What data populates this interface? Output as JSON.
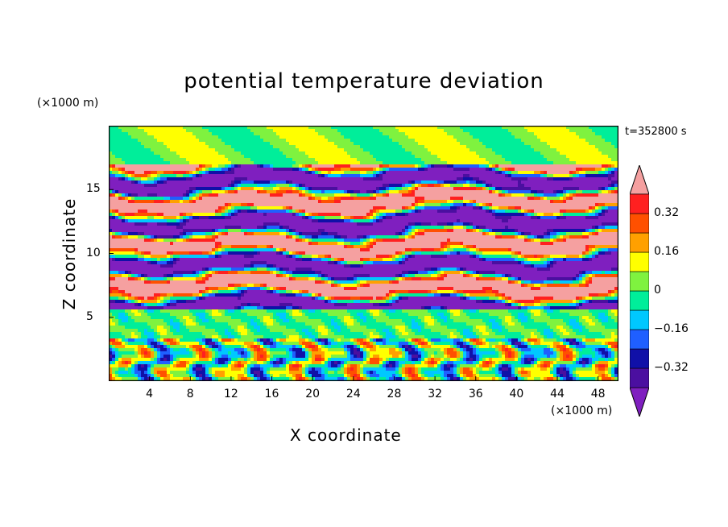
{
  "chart_data": {
    "type": "heatmap",
    "title": "potential temperature deviation",
    "xlabel": "X coordinate",
    "ylabel": "Z coordinate",
    "x_unit": "(×1000 m)",
    "y_unit": "(×1000 m)",
    "time_label": "t=352800 s",
    "xlim": [
      0,
      50
    ],
    "ylim": [
      0,
      20
    ],
    "x_ticks": [
      4,
      8,
      12,
      16,
      20,
      24,
      28,
      32,
      36,
      40,
      44,
      48
    ],
    "y_ticks": [
      5,
      10,
      15
    ],
    "colorbar": {
      "levels": [
        -0.4,
        -0.32,
        -0.24,
        -0.16,
        -0.08,
        0,
        0.08,
        0.16,
        0.24,
        0.32,
        0.4
      ],
      "labels": [
        "0.32",
        "0.16",
        "0",
        "−0.16",
        "−0.32"
      ],
      "label_values": [
        0.32,
        0.16,
        0,
        -0.16,
        -0.32
      ],
      "colors": [
        "#7f1fbf",
        "#4b0fa0",
        "#1010a8",
        "#1f5fff",
        "#00c8ff",
        "#00ee9a",
        "#7ff23f",
        "#ffff00",
        "#ffa000",
        "#ff5000",
        "#ff2020",
        "#f5a0a0"
      ]
    }
  }
}
